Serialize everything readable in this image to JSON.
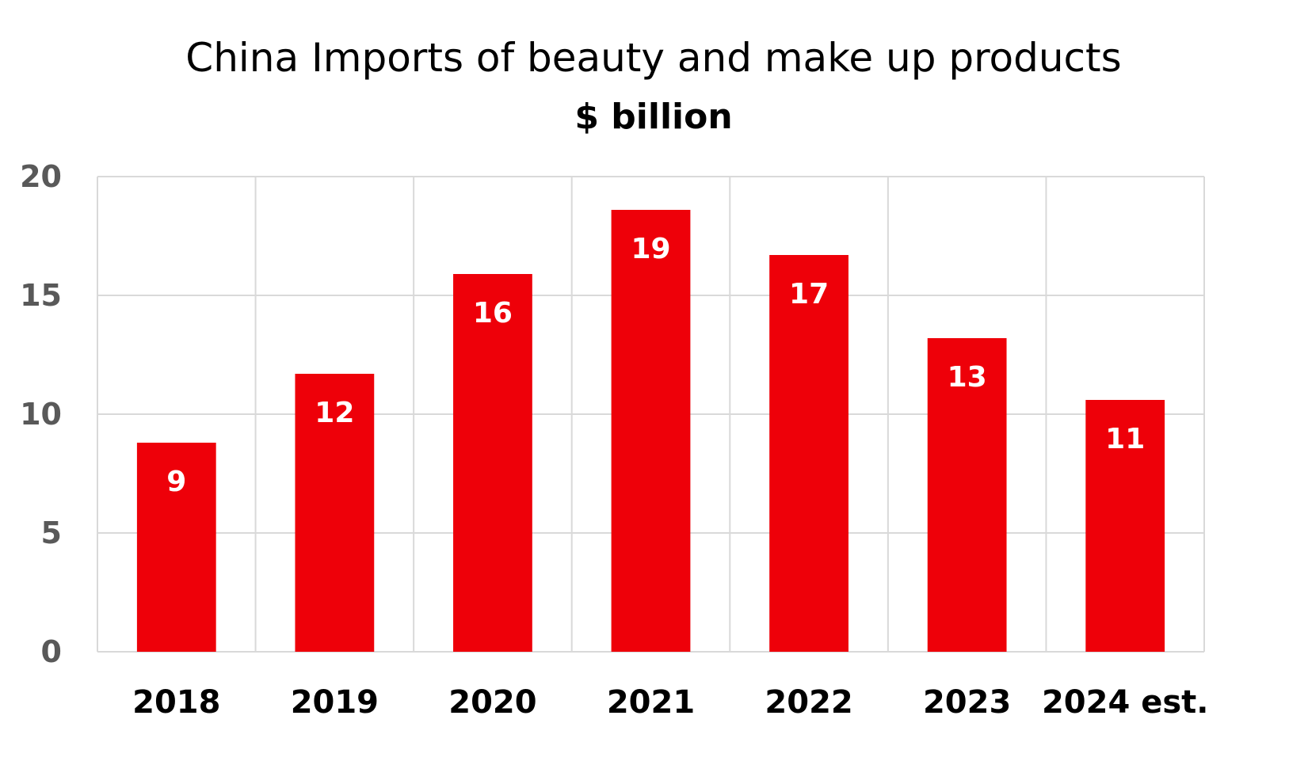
{
  "chart_data": {
    "type": "bar",
    "title": "China Imports of beauty and make up products",
    "subtitle": "$ billion",
    "categories": [
      "2018",
      "2019",
      "2020",
      "2021",
      "2022",
      "2023",
      "2024 est."
    ],
    "series": [
      {
        "values": [
          8.8,
          11.7,
          15.9,
          18.6,
          16.7,
          13.2,
          10.6
        ],
        "data_labels": [
          "9",
          "12",
          "16",
          "19",
          "17",
          "13",
          "11"
        ],
        "color": "#EE0009"
      }
    ],
    "y_ticks": [
      "0",
      "5",
      "10",
      "15",
      "20"
    ],
    "ylim": [
      0,
      20
    ],
    "grid": true,
    "legend": "none",
    "colors": {
      "bar": "#EE0009",
      "grid": "#d9d9d9",
      "y_tick": "#595959",
      "x_tick": "#000000"
    }
  }
}
